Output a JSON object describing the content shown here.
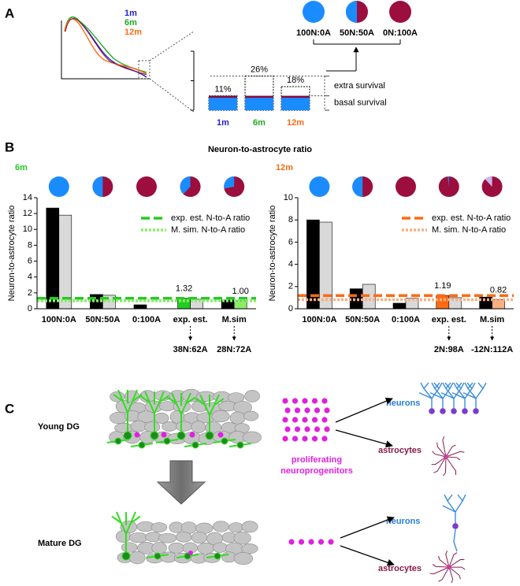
{
  "panel_labels": [
    "A",
    "B",
    "C"
  ],
  "panel_a": {
    "curve_labels": [
      {
        "text": "1m",
        "color": "#2222cc"
      },
      {
        "text": "6m",
        "color": "#22aa22"
      },
      {
        "text": "12m",
        "color": "#ff6a13"
      }
    ],
    "pies": {
      "labels": [
        "100N:0A",
        "50N:50A",
        "0N:100A"
      ],
      "neuron_percent": [
        100,
        50,
        0
      ]
    }
  },
  "panel_b": {
    "title": "Neuron-to-astrocyte ratio"
  },
  "chart_data": [
    {
      "type": "overlay-bar",
      "categories": [
        "1m",
        "6m",
        "12m"
      ],
      "category_colors": [
        "#2222cc",
        "#22aa22",
        "#ff6a13"
      ],
      "series": [
        {
          "name": "extra survival",
          "color": "#ffffff",
          "values": [
            11,
            26,
            18
          ],
          "value_labels": [
            "11%",
            "26%",
            "18%"
          ]
        },
        {
          "name": "basal survival",
          "color": "#1a8cff",
          "values": [
            11,
            11,
            11
          ]
        }
      ],
      "stripe_color": "#8b0a3a",
      "ylim": [
        0,
        45
      ]
    },
    {
      "type": "bar",
      "label": "6m",
      "label_color": "#22cc22",
      "y_label": "Neuron-to-astrocyte ratio",
      "categories": [
        "100N:0A",
        "50N:50A",
        "0:100A",
        "exp. est.",
        "M.sim"
      ],
      "pie_neuron_percent": [
        100,
        50,
        0,
        38,
        28
      ],
      "ratio_labels": [
        null,
        null,
        null,
        "38N:62A",
        "28N:72A"
      ],
      "series": [
        {
          "colors": [
            "#000000",
            "#000000",
            "#000000",
            "#22cc22",
            "#000000"
          ],
          "values": [
            12.7,
            1.8,
            0.5,
            1.32,
            1.1
          ],
          "value_labels": [
            null,
            null,
            null,
            "1.32",
            null
          ]
        },
        {
          "colors": [
            "#d9d9d9",
            "#d9d9d9",
            "#d9d9d9",
            "#d9d9d9",
            "#88ee66"
          ],
          "values": [
            11.8,
            1.7,
            0,
            1.2,
            1.0
          ],
          "value_labels": [
            null,
            null,
            null,
            null,
            "1.00"
          ]
        }
      ],
      "reference_lines": [
        {
          "name": "exp. est. N-to-A ratio",
          "value": 1.32,
          "color": "#22cc22",
          "style": "dashed"
        },
        {
          "name": "M. sim. N-to-A ratio",
          "value": 1.0,
          "color": "#88ee66",
          "style": "dotted"
        }
      ],
      "ylim": [
        0,
        14
      ],
      "yticks": [
        0,
        2,
        4,
        6,
        8,
        10,
        12,
        14
      ]
    },
    {
      "type": "bar",
      "label": "12m",
      "label_color": "#ff6a13",
      "y_label": "Neuron-to-astrocyte ratio",
      "categories": [
        "100N:0A",
        "50N:50A",
        "0:100A",
        "exp. est.",
        "M.sim"
      ],
      "pie_neuron_percent": [
        100,
        50,
        0,
        2,
        -12
      ],
      "ratio_labels": [
        null,
        null,
        null,
        "2N:98A",
        "-12N:112A"
      ],
      "series": [
        {
          "colors": [
            "#000000",
            "#000000",
            "#000000",
            "#ff6a13",
            "#000000"
          ],
          "values": [
            8.0,
            1.8,
            0.5,
            1.19,
            1.05
          ],
          "value_labels": [
            null,
            null,
            null,
            "1.19",
            null
          ]
        },
        {
          "colors": [
            "#d9d9d9",
            "#d9d9d9",
            "#d9d9d9",
            "#d9d9d9",
            "#f7b083"
          ],
          "values": [
            7.8,
            2.2,
            0.95,
            1.0,
            0.82
          ],
          "value_labels": [
            null,
            null,
            null,
            null,
            "0.82"
          ]
        }
      ],
      "reference_lines": [
        {
          "name": "exp. est. N-to-A ratio",
          "value": 1.19,
          "color": "#ff6a13",
          "style": "dashed"
        },
        {
          "name": "M. sim. N-to-A ratio",
          "value": 0.82,
          "color": "#f7b083",
          "style": "dotted"
        }
      ],
      "ylim": [
        0,
        10
      ],
      "yticks": [
        0,
        2,
        4,
        6,
        8,
        10
      ]
    }
  ],
  "panel_c": {
    "young_label": "Young DG",
    "mature_label": "Mature DG",
    "progenitor_label": [
      "proliferating",
      "neuroprogenitors"
    ],
    "young_outputs": [
      "neurons",
      "astrocytes"
    ],
    "mature_outputs": [
      "neurons",
      "astrocytes"
    ]
  }
}
